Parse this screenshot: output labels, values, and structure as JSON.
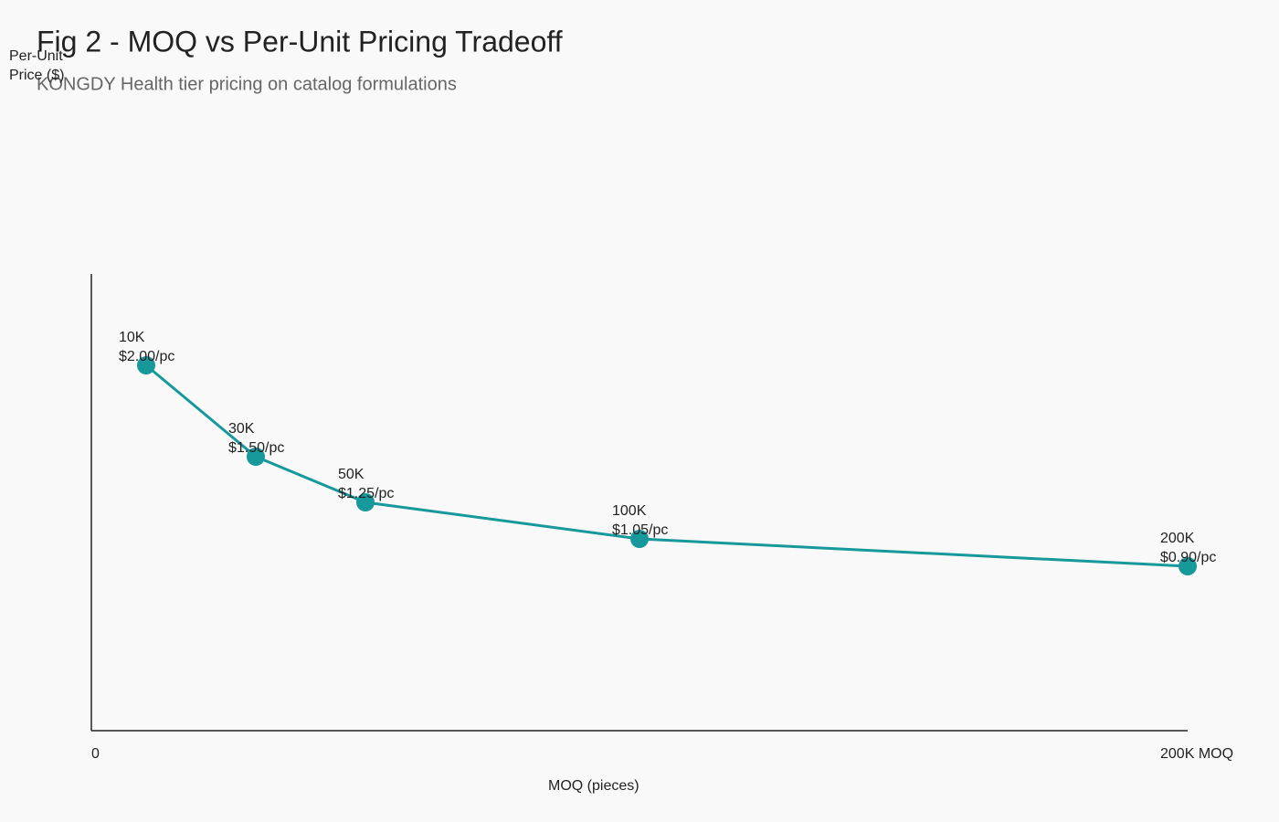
{
  "chart_data": {
    "type": "line",
    "title": "Fig 2 - MOQ vs Per-Unit Pricing Tradeoff",
    "subtitle": "KONGDY Health tier pricing on catalog formulations",
    "xlabel": "MOQ (pieces)",
    "ylabel": "Per-Unit Price ($)",
    "x": [
      10000,
      30000,
      50000,
      100000,
      200000
    ],
    "x_labels": [
      "10K",
      "30K",
      "50K",
      "100K",
      "200K"
    ],
    "values": [
      2.0,
      1.5,
      1.25,
      1.05,
      0.9
    ],
    "value_labels": [
      "$2.00/pc",
      "$1.50/pc",
      "$1.25/pc",
      "$1.05/pc",
      "$0.90/pc"
    ],
    "color": "#17989a",
    "xlim": [
      0,
      200000
    ],
    "xticks": [
      0,
      {
        "value": 200000,
        "label": "200K MOQ"
      }
    ],
    "ylim": [
      0,
      2.5
    ]
  }
}
